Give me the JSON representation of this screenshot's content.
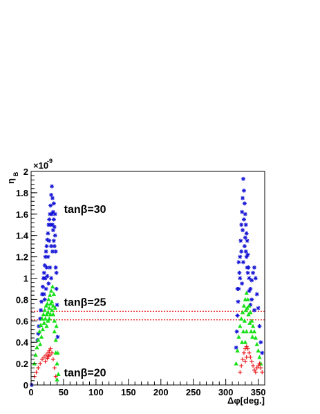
{
  "chart_data": {
    "type": "scatter",
    "title": "",
    "xlabel": "Δφ[deg.]",
    "ylabel": "η",
    "ylabel_subscript": "B",
    "y_multiplier": "×10",
    "y_multiplier_exponent": "-9",
    "xlim": [
      0,
      360
    ],
    "ylim": [
      0,
      2.0
    ],
    "x_ticks": [
      0,
      50,
      100,
      150,
      200,
      250,
      300,
      350
    ],
    "y_ticks": [
      0,
      0.2,
      0.4,
      0.6,
      0.8,
      1,
      1.2,
      1.4,
      1.6,
      1.8,
      2
    ],
    "y_tick_labels": [
      "0",
      "0.2",
      "0.4",
      "0.6",
      "0.8",
      "1",
      "1.2",
      "1.4",
      "1.6",
      "1.8",
      "2"
    ],
    "grid": false,
    "reference_lines": [
      {
        "y": 0.61,
        "style": "dotted",
        "color": "#e8171c"
      },
      {
        "y": 0.69,
        "style": "dotted",
        "color": "#e8171c"
      }
    ],
    "annotations": [
      {
        "text": "tanβ=30",
        "x": 55,
        "y": 1.65
      },
      {
        "text": "tanβ=25",
        "x": 55,
        "y": 0.78
      },
      {
        "text": "tanβ=20",
        "x": 55,
        "y": 0.12
      }
    ],
    "series": [
      {
        "label": "tanβ=30",
        "color": "#1515d6",
        "marker": "star",
        "points": [
          [
            1,
            0.0
          ],
          [
            10,
            0.42
          ],
          [
            11,
            0.48
          ],
          [
            12,
            0.55
          ],
          [
            14,
            0.62
          ],
          [
            15,
            0.7
          ],
          [
            16,
            0.78
          ],
          [
            17,
            0.85
          ],
          [
            18,
            0.92
          ],
          [
            19,
            1.0
          ],
          [
            20,
            1.05
          ],
          [
            21,
            1.12
          ],
          [
            22,
            1.2
          ],
          [
            23,
            1.25
          ],
          [
            24,
            1.3
          ],
          [
            25,
            1.36
          ],
          [
            26,
            1.42
          ],
          [
            27,
            1.5
          ],
          [
            28,
            1.55
          ],
          [
            29,
            1.6
          ],
          [
            30,
            1.68
          ],
          [
            31,
            1.78
          ],
          [
            32,
            1.86
          ],
          [
            33,
            1.75
          ],
          [
            34,
            1.62
          ],
          [
            35,
            1.55
          ],
          [
            36,
            1.48
          ],
          [
            37,
            1.4
          ],
          [
            38,
            1.25
          ],
          [
            39,
            1.05
          ],
          [
            40,
            0.75
          ],
          [
            41,
            0.45
          ],
          [
            20,
            0.85
          ],
          [
            22,
            1.0
          ],
          [
            24,
            1.1
          ],
          [
            26,
            1.2
          ],
          [
            28,
            1.35
          ],
          [
            30,
            1.5
          ],
          [
            32,
            1.6
          ],
          [
            34,
            1.45
          ],
          [
            36,
            1.3
          ],
          [
            38,
            1.1
          ],
          [
            27,
            0.95
          ],
          [
            29,
            1.1
          ],
          [
            31,
            1.3
          ],
          [
            33,
            1.5
          ],
          [
            35,
            1.7
          ],
          [
            37,
            1.6
          ],
          [
            25,
            1.02
          ],
          [
            23,
            0.9
          ],
          [
            21,
            0.8
          ],
          [
            35,
            1.35
          ],
          [
            33,
            1.25
          ],
          [
            31,
            1.0
          ],
          [
            39,
            0.9
          ],
          [
            316,
            0.35
          ],
          [
            317,
            0.5
          ],
          [
            318,
            0.65
          ],
          [
            319,
            0.78
          ],
          [
            320,
            0.9
          ],
          [
            321,
            1.05
          ],
          [
            322,
            1.2
          ],
          [
            323,
            1.35
          ],
          [
            324,
            1.5
          ],
          [
            325,
            1.62
          ],
          [
            326,
            1.75
          ],
          [
            327,
            1.93
          ],
          [
            328,
            1.82
          ],
          [
            329,
            1.7
          ],
          [
            330,
            1.6
          ],
          [
            331,
            1.5
          ],
          [
            332,
            1.42
          ],
          [
            333,
            1.35
          ],
          [
            334,
            1.22
          ],
          [
            335,
            1.1
          ],
          [
            336,
            1.0
          ],
          [
            338,
            0.9
          ],
          [
            340,
            0.98
          ],
          [
            342,
            1.05
          ],
          [
            344,
            1.1
          ],
          [
            346,
            1.0
          ],
          [
            348,
            0.85
          ],
          [
            350,
            0.72
          ],
          [
            352,
            0.55
          ],
          [
            354,
            0.4
          ],
          [
            356,
            0.3
          ],
          [
            322,
            1.0
          ],
          [
            324,
            1.25
          ],
          [
            326,
            1.45
          ],
          [
            328,
            1.55
          ],
          [
            330,
            1.38
          ],
          [
            332,
            1.2
          ],
          [
            334,
            1.05
          ],
          [
            336,
            0.88
          ],
          [
            338,
            0.75
          ],
          [
            325,
            0.95
          ],
          [
            327,
            1.15
          ],
          [
            329,
            1.3
          ],
          [
            331,
            1.25
          ],
          [
            333,
            1.1
          ],
          [
            318,
            0.9
          ],
          [
            320,
            1.15
          ],
          [
            340,
            0.8
          ],
          [
            344,
            0.7
          ]
        ]
      },
      {
        "label": "tanβ=25",
        "color": "#18e018",
        "marker": "triangle",
        "points": [
          [
            5,
            0.2
          ],
          [
            7,
            0.28
          ],
          [
            9,
            0.35
          ],
          [
            11,
            0.42
          ],
          [
            13,
            0.5
          ],
          [
            15,
            0.56
          ],
          [
            17,
            0.62
          ],
          [
            19,
            0.66
          ],
          [
            21,
            0.7
          ],
          [
            23,
            0.74
          ],
          [
            25,
            0.76
          ],
          [
            27,
            0.8
          ],
          [
            29,
            0.84
          ],
          [
            31,
            0.88
          ],
          [
            33,
            0.92
          ],
          [
            35,
            0.85
          ],
          [
            37,
            0.72
          ],
          [
            39,
            0.55
          ],
          [
            41,
            0.3
          ],
          [
            42,
            0.1
          ],
          [
            14,
            0.38
          ],
          [
            16,
            0.45
          ],
          [
            18,
            0.52
          ],
          [
            20,
            0.58
          ],
          [
            22,
            0.62
          ],
          [
            24,
            0.66
          ],
          [
            26,
            0.68
          ],
          [
            28,
            0.72
          ],
          [
            30,
            0.76
          ],
          [
            32,
            0.78
          ],
          [
            34,
            0.74
          ],
          [
            36,
            0.6
          ],
          [
            38,
            0.42
          ],
          [
            40,
            0.2
          ],
          [
            24,
            0.55
          ],
          [
            26,
            0.6
          ],
          [
            28,
            0.62
          ],
          [
            30,
            0.66
          ],
          [
            32,
            0.7
          ],
          [
            34,
            0.66
          ],
          [
            36,
            0.5
          ],
          [
            38,
            0.3
          ],
          [
            40,
            0.05
          ],
          [
            316,
            0.2
          ],
          [
            318,
            0.32
          ],
          [
            320,
            0.45
          ],
          [
            322,
            0.55
          ],
          [
            324,
            0.62
          ],
          [
            326,
            0.68
          ],
          [
            328,
            0.74
          ],
          [
            330,
            0.8
          ],
          [
            332,
            0.86
          ],
          [
            334,
            0.8
          ],
          [
            336,
            0.74
          ],
          [
            338,
            0.68
          ],
          [
            340,
            0.6
          ],
          [
            342,
            0.55
          ],
          [
            344,
            0.5
          ],
          [
            346,
            0.44
          ],
          [
            348,
            0.38
          ],
          [
            350,
            0.32
          ],
          [
            352,
            0.26
          ],
          [
            354,
            0.2
          ],
          [
            325,
            0.4
          ],
          [
            327,
            0.5
          ],
          [
            329,
            0.6
          ],
          [
            331,
            0.7
          ],
          [
            333,
            0.72
          ],
          [
            335,
            0.66
          ],
          [
            337,
            0.58
          ],
          [
            339,
            0.5
          ],
          [
            341,
            0.45
          ],
          [
            330,
            0.4
          ],
          [
            332,
            0.5
          ]
        ]
      },
      {
        "label": "tanβ=20",
        "color": "#e8171c",
        "marker": "plus",
        "points": [
          [
            5,
            0.08
          ],
          [
            8,
            0.12
          ],
          [
            11,
            0.16
          ],
          [
            14,
            0.2
          ],
          [
            17,
            0.24
          ],
          [
            20,
            0.26
          ],
          [
            23,
            0.28
          ],
          [
            26,
            0.3
          ],
          [
            28,
            0.32
          ],
          [
            30,
            0.34
          ],
          [
            32,
            0.3
          ],
          [
            34,
            0.24
          ],
          [
            36,
            0.16
          ],
          [
            38,
            0.08
          ],
          [
            22,
            0.22
          ],
          [
            25,
            0.25
          ],
          [
            27,
            0.27
          ],
          [
            29,
            0.28
          ],
          [
            322,
            0.12
          ],
          [
            324,
            0.18
          ],
          [
            326,
            0.24
          ],
          [
            328,
            0.3
          ],
          [
            330,
            0.34
          ],
          [
            332,
            0.36
          ],
          [
            334,
            0.34
          ],
          [
            336,
            0.3
          ],
          [
            338,
            0.26
          ],
          [
            340,
            0.22
          ],
          [
            342,
            0.18
          ],
          [
            344,
            0.14
          ],
          [
            346,
            0.12
          ],
          [
            348,
            0.16
          ],
          [
            350,
            0.18
          ],
          [
            352,
            0.2
          ],
          [
            354,
            0.16
          ],
          [
            356,
            0.12
          ],
          [
            330,
            0.22
          ],
          [
            332,
            0.26
          ]
        ]
      }
    ]
  }
}
